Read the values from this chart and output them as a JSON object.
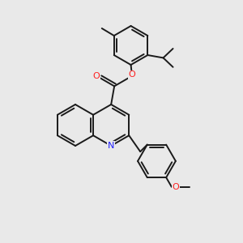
{
  "bg_color": "#e9e9e9",
  "bond_color": "#1a1a1a",
  "n_color": "#2020ff",
  "o_color": "#ff2020",
  "lw": 1.4,
  "figsize": [
    3.0,
    3.0
  ],
  "dpi": 100,
  "xlim": [
    0,
    10
  ],
  "ylim": [
    0,
    10
  ]
}
